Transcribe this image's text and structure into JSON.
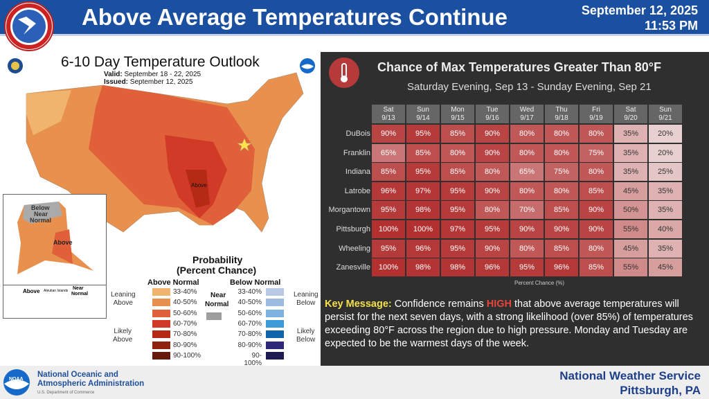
{
  "header": {
    "title": "Above Average Temperatures Continue",
    "date": "September 12, 2025",
    "time": "11:53 PM",
    "logo_text": "NATIONAL WEATHER SERVICE"
  },
  "outlook": {
    "title": "6-10 Day Temperature Outlook",
    "valid_label": "Valid:",
    "valid": "September 18 - 22, 2025",
    "issued_label": "Issued:",
    "issued": "September 12, 2025",
    "map_labels": {
      "above": "Above",
      "ak_below": "Below",
      "ak_near": "Near",
      "ak_normal": "Normal",
      "ak_above": "Above",
      "aleut_above": "Above",
      "aleutian": "Aleutian Islands",
      "aleut_near": "Near",
      "aleut_normal": "Normal"
    },
    "legend": {
      "title1": "Probability",
      "title2": "(Percent Chance)",
      "above_header": "Above Normal",
      "below_header": "Below Normal",
      "near1": "Near",
      "near2": "Normal",
      "near_color": "#9e9e9e",
      "leaning_above": [
        "Leaning",
        "Above"
      ],
      "likely_above": [
        "Likely",
        "Above"
      ],
      "leaning_below": [
        "Leaning",
        "Below"
      ],
      "likely_below": [
        "Likely",
        "Below"
      ],
      "ranges": [
        "33-40%",
        "40-50%",
        "50-60%",
        "60-70%",
        "70-80%",
        "80-90%",
        "90-100%"
      ],
      "above_colors": [
        "#f0b46e",
        "#e8904e",
        "#e0603a",
        "#d03a26",
        "#b52a14",
        "#8e2410",
        "#651a0c"
      ],
      "below_colors": [
        "#b9c8e4",
        "#9dbbe0",
        "#7eb2df",
        "#3d9ad8",
        "#1064aa",
        "#2e2878",
        "#1e1a52"
      ]
    }
  },
  "panel": {
    "icon": "thermometer-icon",
    "title": "Chance of Max Temperatures Greater Than 80°F",
    "subtitle": "Saturday Evening, Sep 13 - Sunday Evening, Sep 21",
    "axis_caption": "Percent Chance (%)",
    "columns": [
      [
        "Sat",
        "9/13"
      ],
      [
        "Sun",
        "9/14"
      ],
      [
        "Mon",
        "9/15"
      ],
      [
        "Tue",
        "9/16"
      ],
      [
        "Wed",
        "9/17"
      ],
      [
        "Thu",
        "9/18"
      ],
      [
        "Fri",
        "9/19"
      ],
      [
        "Sat",
        "9/20"
      ],
      [
        "Sun",
        "9/21"
      ]
    ],
    "rows": [
      {
        "name": "DuBois",
        "values": [
          "90%",
          "95%",
          "85%",
          "90%",
          "80%",
          "80%",
          "80%",
          "35%",
          "20%"
        ]
      },
      {
        "name": "Franklin",
        "values": [
          "65%",
          "85%",
          "80%",
          "90%",
          "80%",
          "80%",
          "75%",
          "35%",
          "20%"
        ]
      },
      {
        "name": "Indiana",
        "values": [
          "85%",
          "95%",
          "85%",
          "80%",
          "65%",
          "75%",
          "80%",
          "35%",
          "25%"
        ]
      },
      {
        "name": "Latrobe",
        "values": [
          "96%",
          "97%",
          "95%",
          "90%",
          "80%",
          "80%",
          "85%",
          "45%",
          "35%"
        ]
      },
      {
        "name": "Morgantown",
        "values": [
          "95%",
          "98%",
          "95%",
          "80%",
          "70%",
          "85%",
          "90%",
          "50%",
          "35%"
        ]
      },
      {
        "name": "Pittsburgh",
        "values": [
          "100%",
          "100%",
          "97%",
          "95%",
          "90%",
          "90%",
          "90%",
          "55%",
          "40%"
        ]
      },
      {
        "name": "Wheeling",
        "values": [
          "95%",
          "96%",
          "95%",
          "90%",
          "80%",
          "85%",
          "80%",
          "45%",
          "35%"
        ]
      },
      {
        "name": "Zanesville",
        "values": [
          "100%",
          "98%",
          "98%",
          "96%",
          "95%",
          "96%",
          "85%",
          "55%",
          "45%"
        ]
      }
    ],
    "key_label": "Key Message:",
    "key_pre": " Confidence remains ",
    "key_high": "HIGH",
    "key_post": " that above average temperatures will persist for the next seven days, with a strong likelihood (over 85%) of temperatures exceeding 80°F across the region due to high pressure. Monday and Tuesday are expected to be the warmest days of the week.",
    "key_color": "#f5e14a",
    "high_color": "#e8453c"
  },
  "footer": {
    "noaa1": "National Oceanic and",
    "noaa2": "Atmospheric Administration",
    "doc": "U.S. Department of Commerce",
    "noaa_logo": "NOAA",
    "nws": "National Weather Service",
    "office": "Pittsburgh, PA"
  }
}
